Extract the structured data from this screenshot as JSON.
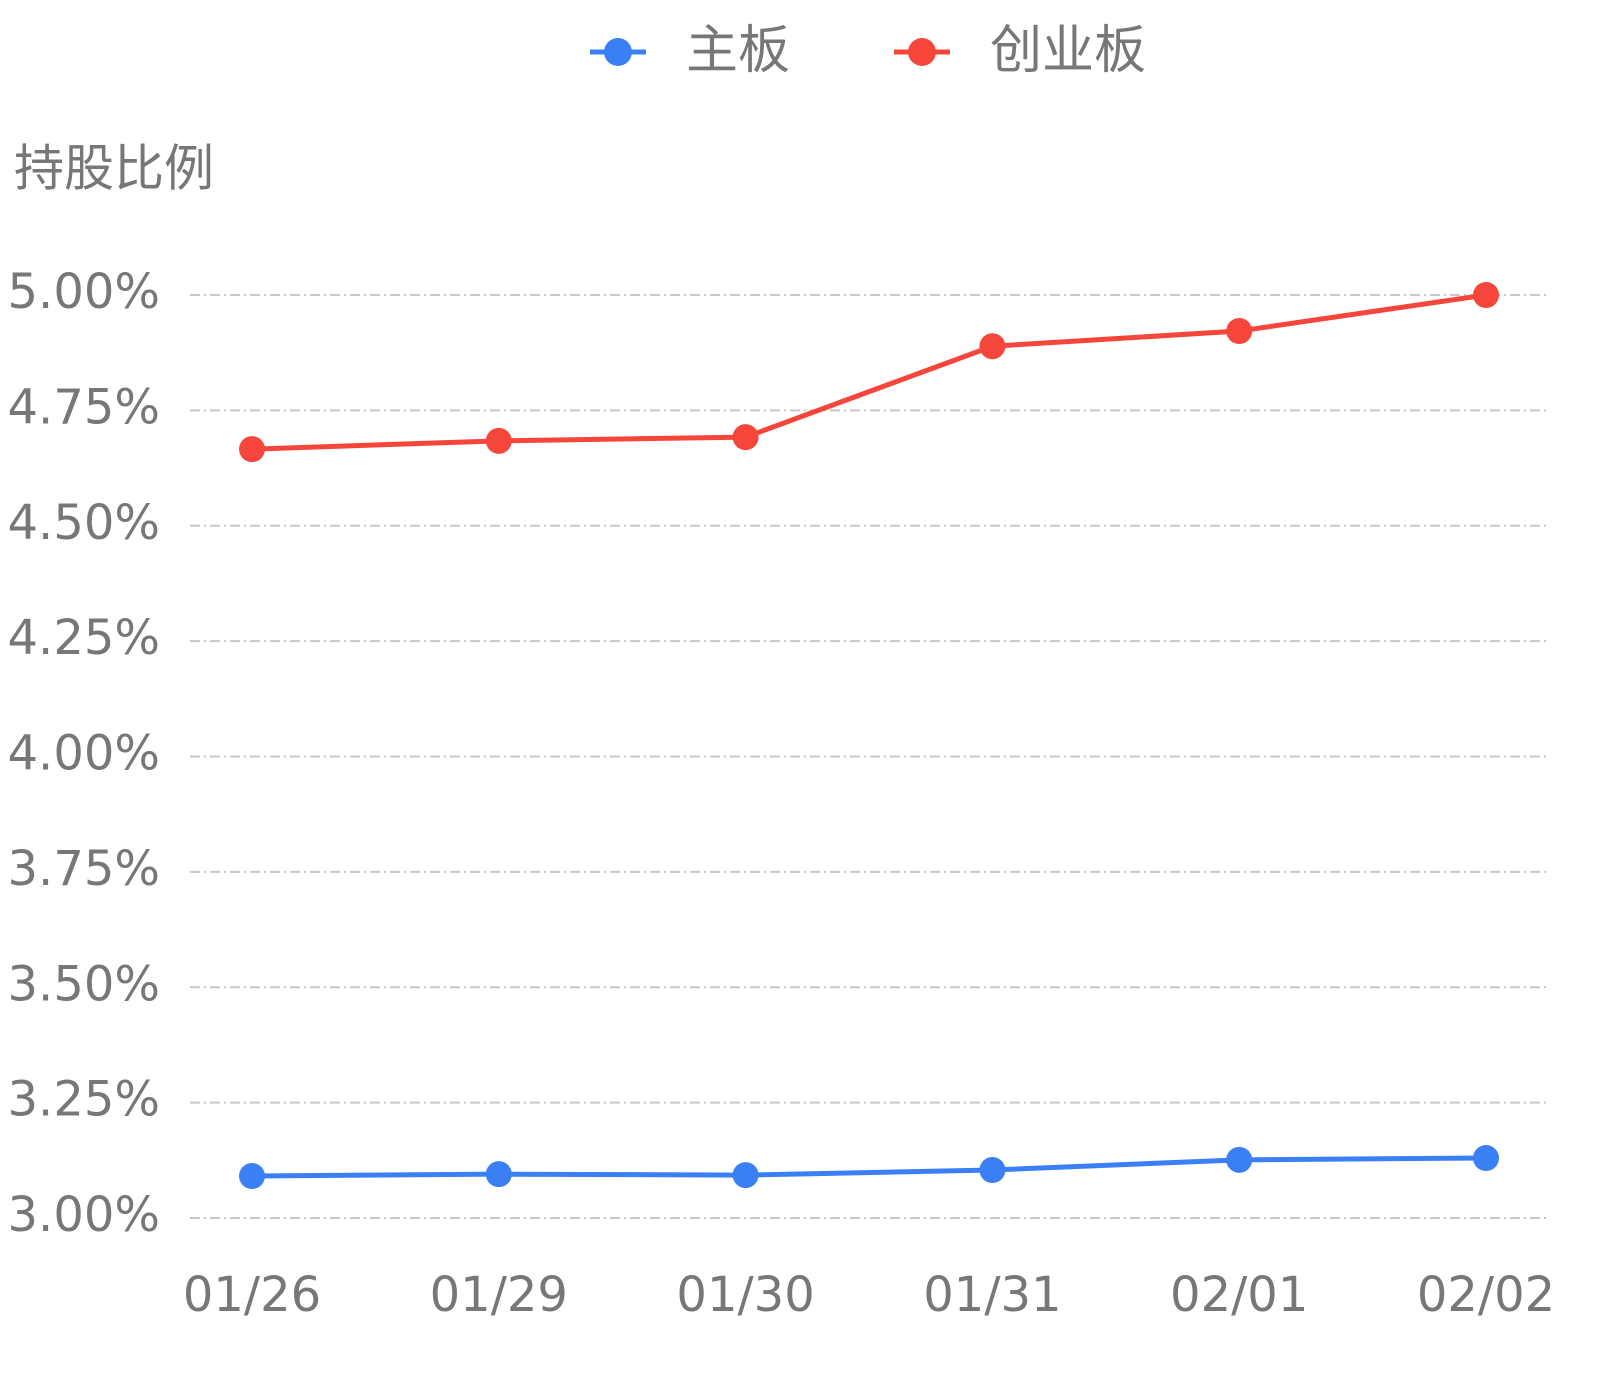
{
  "chart_data": {
    "type": "line",
    "y_label": "持股比例",
    "categories": [
      "01/26",
      "01/29",
      "01/30",
      "01/31",
      "02/01",
      "02/02"
    ],
    "series": [
      {
        "name": "主板",
        "color": "#3b7ff5",
        "values": [
          3.091,
          3.095,
          3.093,
          3.104,
          3.126,
          3.13
        ]
      },
      {
        "name": "创业板",
        "color": "#f6453b",
        "values": [
          4.666,
          4.684,
          4.692,
          4.889,
          4.922,
          5.0
        ]
      }
    ],
    "ylim": [
      3.0,
      5.0
    ],
    "yticks": [
      {
        "value": 3.0,
        "label": "3.00%"
      },
      {
        "value": 3.25,
        "label": "3.25%"
      },
      {
        "value": 3.5,
        "label": "3.50%"
      },
      {
        "value": 3.75,
        "label": "3.75%"
      },
      {
        "value": 4.0,
        "label": "4.00%"
      },
      {
        "value": 4.25,
        "label": "4.25%"
      },
      {
        "value": 4.5,
        "label": "4.50%"
      },
      {
        "value": 4.75,
        "label": "4.75%"
      },
      {
        "value": 5.0,
        "label": "5.00%"
      }
    ],
    "grid": true
  }
}
